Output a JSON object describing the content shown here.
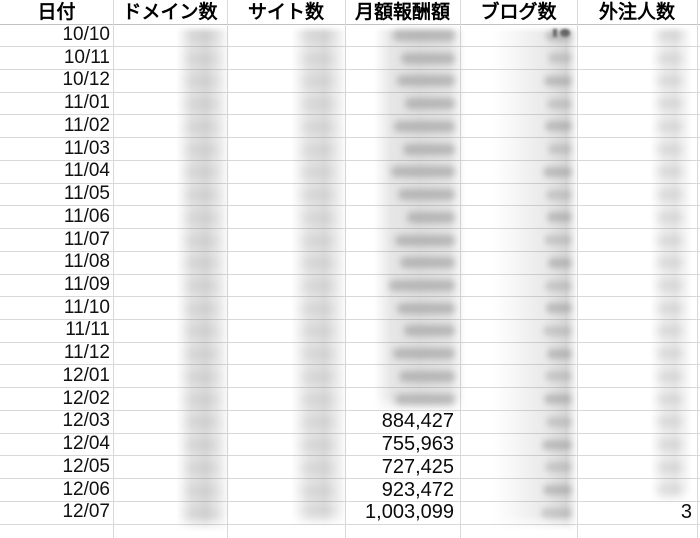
{
  "table": {
    "columns": [
      {
        "id": "date",
        "label": "日付"
      },
      {
        "id": "domains",
        "label": "ドメイン数"
      },
      {
        "id": "sites",
        "label": "サイト数"
      },
      {
        "id": "monthly_reward",
        "label": "月額報酬額"
      },
      {
        "id": "blogs",
        "label": "ブログ数"
      },
      {
        "id": "outsourced",
        "label": "外注人数"
      }
    ],
    "rows": [
      {
        "date": "10/10"
      },
      {
        "date": "10/11"
      },
      {
        "date": "10/12"
      },
      {
        "date": "11/01"
      },
      {
        "date": "11/02"
      },
      {
        "date": "11/03"
      },
      {
        "date": "11/04"
      },
      {
        "date": "11/05"
      },
      {
        "date": "11/06"
      },
      {
        "date": "11/07"
      },
      {
        "date": "11/08"
      },
      {
        "date": "11/09"
      },
      {
        "date": "11/10"
      },
      {
        "date": "11/11"
      },
      {
        "date": "11/12"
      },
      {
        "date": "12/01"
      },
      {
        "date": "12/02"
      },
      {
        "date": "12/03",
        "monthly_reward": "884,427"
      },
      {
        "date": "12/04",
        "monthly_reward": "755,963"
      },
      {
        "date": "12/05",
        "monthly_reward": "727,425"
      },
      {
        "date": "12/06",
        "monthly_reward": "923,472"
      },
      {
        "date": "12/07",
        "monthly_reward": "1,003,099",
        "outsourced": "3"
      }
    ],
    "redacted_row_ranges": {
      "domains": [
        0,
        21
      ],
      "sites": [
        0,
        21
      ],
      "monthly_reward": [
        0,
        16
      ],
      "blogs": [
        0,
        21
      ],
      "outsourced": [
        0,
        20
      ]
    }
  },
  "colors": {
    "background": "#ffffff",
    "gridline": "#d8d8d8",
    "header_border": "#c2c2c2",
    "text": "#0b0b0b",
    "redaction_gray": "#d9d9d9"
  }
}
